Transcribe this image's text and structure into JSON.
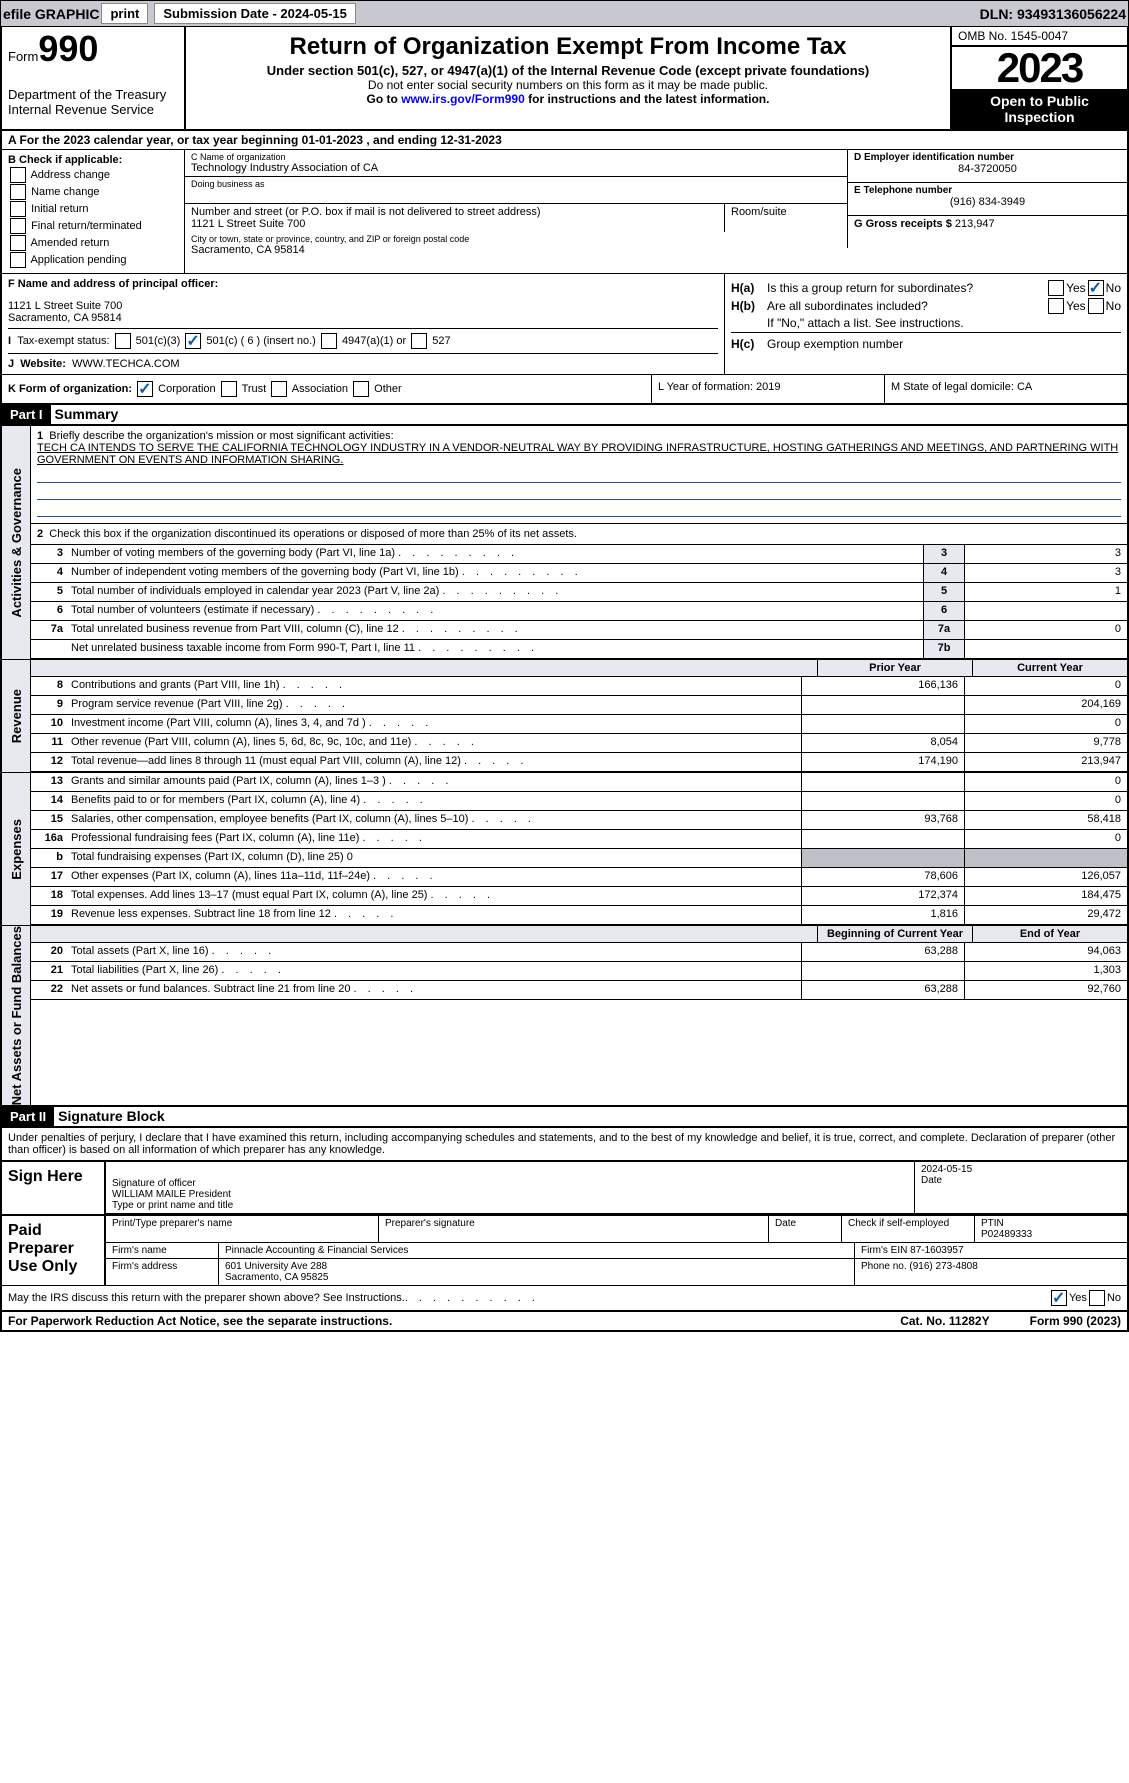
{
  "topbar": {
    "efile": "efile GRAPHIC",
    "print": "print",
    "sub_label": "Submission Date - 2024-05-15",
    "dln": "DLN: 93493136056224"
  },
  "hdr": {
    "form_prefix": "Form",
    "form_no": "990",
    "dept": "Department of the Treasury Internal Revenue Service",
    "title": "Return of Organization Exempt From Income Tax",
    "sub1": "Under section 501(c), 527, or 4947(a)(1) of the Internal Revenue Code (except private foundations)",
    "sub2": "Do not enter social security numbers on this form as it may be made public.",
    "sub3_a": "Go to ",
    "sub3_link": "www.irs.gov/Form990",
    "sub3_b": " for instructions and the latest information.",
    "omb": "OMB No. 1545-0047",
    "year": "2023",
    "insp": "Open to Public Inspection"
  },
  "A": {
    "txt": "A For the 2023 calendar year, or tax year beginning 01-01-2023     , and ending 12-31-2023"
  },
  "B": {
    "lbl": "B Check if applicable:",
    "i1": "Address change",
    "i2": "Name change",
    "i3": "Initial return",
    "i4": "Final return/terminated",
    "i5": "Amended return",
    "i6": "Application pending"
  },
  "C": {
    "name_lbl": "C Name of organization",
    "name": "Technology Industry Association of CA",
    "dba_lbl": "Doing business as",
    "street_lbl": "Number and street (or P.O. box if mail is not delivered to street address)",
    "street": "1121 L Street Suite 700",
    "room_lbl": "Room/suite",
    "city_lbl": "City or town, state or province, country, and ZIP or foreign postal code",
    "city": "Sacramento, CA  95814"
  },
  "D": {
    "lbl": "D Employer identification number",
    "val": "84-3720050"
  },
  "E": {
    "lbl": "E Telephone number",
    "val": "(916) 834-3949"
  },
  "G": {
    "lbl": "G Gross receipts $",
    "val": "213,947"
  },
  "F": {
    "lbl": "F  Name and address of principal officer:",
    "addr1": "1121 L Street Suite 700",
    "addr2": "Sacramento, CA  95814"
  },
  "H": {
    "a": "Is this a group return for subordinates?",
    "b": "Are all subordinates included?",
    "bnote": "If \"No,\" attach a list. See instructions.",
    "c": "Group exemption number"
  },
  "I": {
    "lbl": "Tax-exempt status:",
    "o1": "501(c)(3)",
    "o2": "501(c) ( 6 ) (insert no.)",
    "o3": "4947(a)(1) or",
    "o4": "527"
  },
  "J": {
    "lbl": "Website:",
    "val": "WWW.TECHCA.COM"
  },
  "K": {
    "lbl": "K Form of organization:",
    "o1": "Corporation",
    "o2": "Trust",
    "o3": "Association",
    "o4": "Other"
  },
  "L": {
    "txt": "L Year of formation: 2019"
  },
  "M": {
    "txt": "M State of legal domicile: CA"
  },
  "part1": {
    "lbl": "Part I",
    "t": "Summary"
  },
  "sect": {
    "ag": "Activities & Governance",
    "rev": "Revenue",
    "exp": "Expenses",
    "net": "Net Assets or Fund Balances"
  },
  "l1": {
    "lbl": "Briefly describe the organization's mission or most significant activities:",
    "txt": "TECH CA INTENDS TO SERVE THE CALIFORNIA TECHNOLOGY INDUSTRY IN A VENDOR-NEUTRAL WAY BY PROVIDING INFRASTRUCTURE, HOSTING GATHERINGS AND MEETINGS, AND PARTNERING WITH GOVERNMENT ON EVENTS AND INFORMATION SHARING."
  },
  "l2": "Check this box       if the organization discontinued its operations or disposed of more than 25% of its net assets.",
  "rows_single": [
    {
      "n": "3",
      "d": "Number of voting members of the governing body (Part VI, line 1a)",
      "b": "3",
      "v": "3"
    },
    {
      "n": "4",
      "d": "Number of independent voting members of the governing body (Part VI, line 1b)",
      "b": "4",
      "v": "3"
    },
    {
      "n": "5",
      "d": "Total number of individuals employed in calendar year 2023 (Part V, line 2a)",
      "b": "5",
      "v": "1"
    },
    {
      "n": "6",
      "d": "Total number of volunteers (estimate if necessary)",
      "b": "6",
      "v": ""
    },
    {
      "n": "7a",
      "d": "Total unrelated business revenue from Part VIII, column (C), line 12",
      "b": "7a",
      "v": "0"
    },
    {
      "n": "",
      "d": "Net unrelated business taxable income from Form 990-T, Part I, line 11",
      "b": "7b",
      "v": ""
    }
  ],
  "pycol": "Prior Year",
  "cycol": "Current Year",
  "rows_rev": [
    {
      "n": "8",
      "d": "Contributions and grants (Part VIII, line 1h)",
      "p": "166,136",
      "c": "0"
    },
    {
      "n": "9",
      "d": "Program service revenue (Part VIII, line 2g)",
      "p": "",
      "c": "204,169"
    },
    {
      "n": "10",
      "d": "Investment income (Part VIII, column (A), lines 3, 4, and 7d )",
      "p": "",
      "c": "0"
    },
    {
      "n": "11",
      "d": "Other revenue (Part VIII, column (A), lines 5, 6d, 8c, 9c, 10c, and 11e)",
      "p": "8,054",
      "c": "9,778"
    },
    {
      "n": "12",
      "d": "Total revenue—add lines 8 through 11 (must equal Part VIII, column (A), line 12)",
      "p": "174,190",
      "c": "213,947"
    }
  ],
  "rows_exp": [
    {
      "n": "13",
      "d": "Grants and similar amounts paid (Part IX, column (A), lines 1–3 )",
      "p": "",
      "c": "0"
    },
    {
      "n": "14",
      "d": "Benefits paid to or for members (Part IX, column (A), line 4)",
      "p": "",
      "c": "0"
    },
    {
      "n": "15",
      "d": "Salaries, other compensation, employee benefits (Part IX, column (A), lines 5–10)",
      "p": "93,768",
      "c": "58,418"
    },
    {
      "n": "16a",
      "d": "Professional fundraising fees (Part IX, column (A), line 11e)",
      "p": "",
      "c": "0"
    },
    {
      "n": "b",
      "d": "Total fundraising expenses (Part IX, column (D), line 25) 0",
      "shade": true
    },
    {
      "n": "17",
      "d": "Other expenses (Part IX, column (A), lines 11a–11d, 11f–24e)",
      "p": "78,606",
      "c": "126,057"
    },
    {
      "n": "18",
      "d": "Total expenses. Add lines 13–17 (must equal Part IX, column (A), line 25)",
      "p": "172,374",
      "c": "184,475"
    },
    {
      "n": "19",
      "d": "Revenue less expenses. Subtract line 18 from line 12",
      "p": "1,816",
      "c": "29,472"
    }
  ],
  "bycol": "Beginning of Current Year",
  "eycol": "End of Year",
  "rows_net": [
    {
      "n": "20",
      "d": "Total assets (Part X, line 16)",
      "p": "63,288",
      "c": "94,063"
    },
    {
      "n": "21",
      "d": "Total liabilities (Part X, line 26)",
      "p": "",
      "c": "1,303"
    },
    {
      "n": "22",
      "d": "Net assets or fund balances. Subtract line 21 from line 20",
      "p": "63,288",
      "c": "92,760"
    }
  ],
  "part2": {
    "lbl": "Part II",
    "t": "Signature Block"
  },
  "perjury": "Under penalties of perjury, I declare that I have examined this return, including accompanying schedules and statements, and to the best of my knowledge and belief, it is true, correct, and complete. Declaration of preparer (other than officer) is based on all information of which preparer has any knowledge.",
  "sign": {
    "lbl": "Sign Here",
    "sig": "Signature of officer",
    "name": "WILLIAM MAILE  President",
    "type": "Type or print name and title",
    "date_lbl": "Date",
    "date": "2024-05-15"
  },
  "paid": {
    "lbl": "Paid Preparer Use Only",
    "prep_name_lbl": "Print/Type preparer's name",
    "prep_sig_lbl": "Preparer's signature",
    "date_lbl": "Date",
    "self_lbl": "Check       if self-employed",
    "ptin_lbl": "PTIN",
    "ptin": "P02489333",
    "firm_name_lbl": "Firm's name",
    "firm_name": "Pinnacle Accounting & Financial Services",
    "firm_ein_lbl": "Firm's EIN",
    "firm_ein": "87-1603957",
    "firm_addr_lbl": "Firm's address",
    "firm_addr": "601 University Ave 288\nSacramento, CA  95825",
    "phone_lbl": "Phone no.",
    "phone": "(916) 273-4808"
  },
  "irsq": "May the IRS discuss this return with the preparer shown above? See Instructions.",
  "footer": {
    "l": "For Paperwork Reduction Act Notice, see the separate instructions.",
    "c": "Cat. No. 11282Y",
    "r": "Form 990 (2023)"
  },
  "yes": "Yes",
  "no": "No"
}
